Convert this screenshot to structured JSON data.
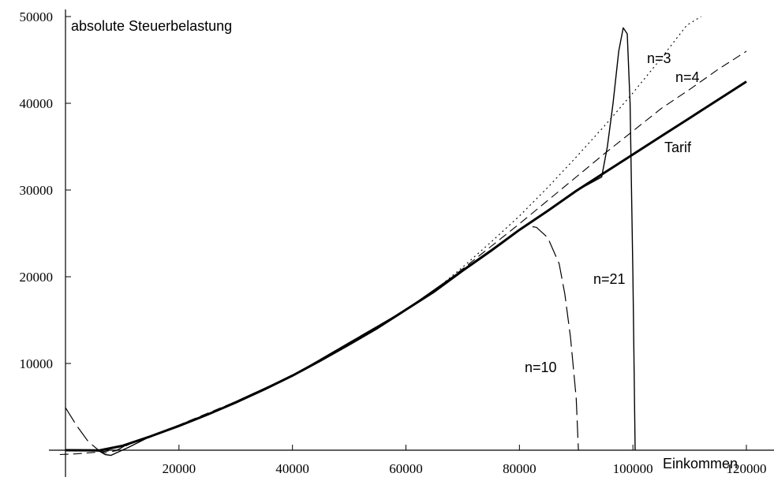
{
  "chart_data": {
    "type": "line",
    "title": "",
    "xlabel": "Einkommen",
    "ylabel": "absolute Steuerbelastung",
    "xlim": [
      0,
      120000
    ],
    "ylim": [
      0,
      50000
    ],
    "grid": false,
    "x_ticks": [
      20000,
      40000,
      60000,
      80000,
      100000,
      120000
    ],
    "y_ticks": [
      10000,
      20000,
      30000,
      40000,
      50000
    ],
    "x_tick_labels": [
      "20000",
      "40000",
      "60000",
      "80000",
      "100000",
      "120000"
    ],
    "y_tick_labels": [
      "10000",
      "20000",
      "30000",
      "40000",
      "50000"
    ],
    "series": [
      {
        "name": "Tarif",
        "style": "solid-thick",
        "points": [
          [
            0,
            0
          ],
          [
            6000,
            -20
          ],
          [
            10000,
            500
          ],
          [
            15000,
            1600
          ],
          [
            20000,
            2800
          ],
          [
            25000,
            4100
          ],
          [
            30000,
            5500
          ],
          [
            35000,
            7000
          ],
          [
            40000,
            8600
          ],
          [
            45000,
            10350
          ],
          [
            50000,
            12200
          ],
          [
            55000,
            14100
          ],
          [
            60000,
            16200
          ],
          [
            65000,
            18300
          ],
          [
            70000,
            20700
          ],
          [
            75000,
            23000
          ],
          [
            80000,
            25400
          ],
          [
            85000,
            27600
          ],
          [
            90000,
            29900
          ],
          [
            95000,
            32000
          ],
          [
            100000,
            34100
          ],
          [
            105000,
            36200
          ],
          [
            110000,
            38300
          ],
          [
            115000,
            40400
          ],
          [
            120000,
            42500
          ]
        ]
      },
      {
        "name": "n=3",
        "style": "dotted",
        "points": [
          [
            65000,
            18400
          ],
          [
            70000,
            21100
          ],
          [
            75000,
            24000
          ],
          [
            80000,
            27000
          ],
          [
            85000,
            30300
          ],
          [
            90000,
            33800
          ],
          [
            95000,
            37400
          ],
          [
            100000,
            41200
          ],
          [
            105000,
            45200
          ],
          [
            109500,
            49000
          ],
          [
            112000,
            50000
          ]
        ]
      },
      {
        "name": "n=4",
        "style": "dashed-medium",
        "points": [
          [
            -1000,
            -500
          ],
          [
            2000,
            -420
          ],
          [
            5000,
            -250
          ],
          [
            9000,
            0
          ],
          [
            12000,
            900
          ],
          [
            20000,
            2900
          ],
          [
            30000,
            5600
          ],
          [
            40000,
            8600
          ],
          [
            50000,
            12200
          ],
          [
            60000,
            16200
          ],
          [
            65000,
            18400
          ],
          [
            70000,
            20900
          ],
          [
            75000,
            23500
          ],
          [
            80000,
            26100
          ],
          [
            85000,
            28800
          ],
          [
            90000,
            31500
          ],
          [
            95000,
            34200
          ],
          [
            100000,
            36800
          ],
          [
            105000,
            39400
          ],
          [
            110000,
            41600
          ],
          [
            115000,
            43900
          ],
          [
            120000,
            46000
          ]
        ]
      },
      {
        "name": "n=10",
        "style": "dashed-long",
        "points": [
          [
            0,
            4900
          ],
          [
            2000,
            2800
          ],
          [
            4000,
            1000
          ],
          [
            6000,
            -100
          ],
          [
            7000,
            -300
          ],
          [
            9000,
            -50
          ],
          [
            11000,
            700
          ],
          [
            15000,
            1600
          ],
          [
            25000,
            4100
          ],
          [
            40000,
            8600
          ],
          [
            60000,
            16200
          ],
          [
            70000,
            20700
          ],
          [
            78000,
            24500
          ],
          [
            81000,
            25900
          ],
          [
            83000,
            25700
          ],
          [
            85000,
            24500
          ],
          [
            87000,
            21500
          ],
          [
            88000,
            18000
          ],
          [
            89000,
            13000
          ],
          [
            90000,
            6000
          ],
          [
            90400,
            0
          ]
        ]
      },
      {
        "name": "n=21",
        "style": "solid-thin",
        "points": [
          [
            0,
            -50
          ],
          [
            4000,
            -10
          ],
          [
            6000,
            -120
          ],
          [
            7000,
            -500
          ],
          [
            8000,
            -600
          ],
          [
            9000,
            -300
          ],
          [
            11000,
            300
          ],
          [
            15000,
            1600
          ],
          [
            25000,
            4100
          ],
          [
            40000,
            8600
          ],
          [
            60000,
            16200
          ],
          [
            80000,
            25400
          ],
          [
            90000,
            29900
          ],
          [
            94500,
            31500
          ],
          [
            95500,
            35000
          ],
          [
            96500,
            40000
          ],
          [
            97500,
            46000
          ],
          [
            98300,
            48700
          ],
          [
            99000,
            48000
          ],
          [
            99500,
            40000
          ],
          [
            100000,
            20000
          ],
          [
            100400,
            0
          ]
        ]
      }
    ]
  },
  "labels": {
    "n3": "n=3",
    "n4": "n=4",
    "tarif": "Tarif",
    "n21": "n=21",
    "n10": "n=10"
  }
}
